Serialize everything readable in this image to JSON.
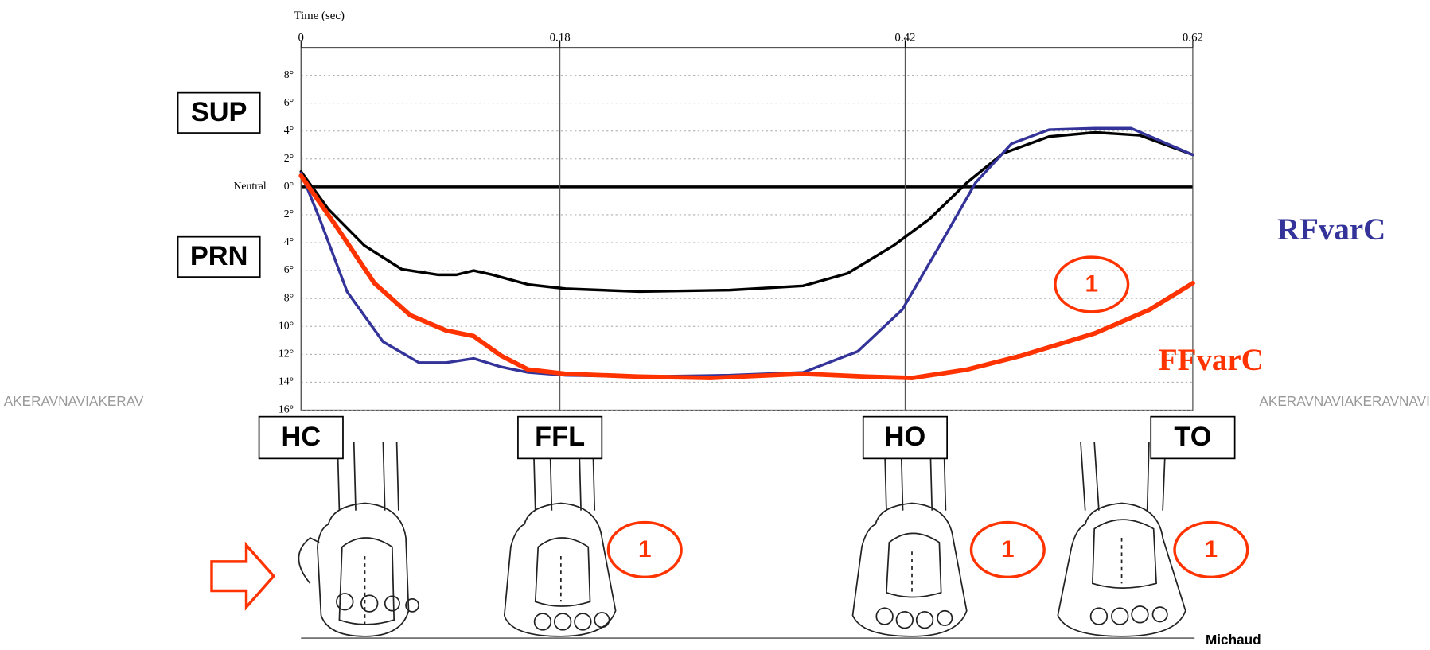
{
  "chart_data": {
    "type": "line",
    "x_label": "Time (sec)",
    "xlim": [
      0,
      0.62
    ],
    "xticks": [
      0,
      0.18,
      0.42,
      0.62
    ],
    "ylim": [
      -16,
      10
    ],
    "yticks": [
      {
        "value": 8,
        "label": "8°"
      },
      {
        "value": 6,
        "label": "6°"
      },
      {
        "value": 4,
        "label": "4°"
      },
      {
        "value": 2,
        "label": "2°"
      },
      {
        "value": 0,
        "label": "0°"
      },
      {
        "value": -2,
        "label": "2°"
      },
      {
        "value": -4,
        "label": "4°"
      },
      {
        "value": -6,
        "label": "6°"
      },
      {
        "value": -8,
        "label": "8°"
      },
      {
        "value": -10,
        "label": "10°"
      },
      {
        "value": -12,
        "label": "12°"
      },
      {
        "value": -14,
        "label": "14°"
      },
      {
        "value": -16,
        "label": "16°"
      }
    ],
    "grid": true,
    "zero_label": "Neutral",
    "side_labels": [
      "SUP",
      "PRN"
    ],
    "phases": [
      "HC",
      "FFL",
      "HO",
      "TO"
    ],
    "series": [
      {
        "color": "#000000",
        "x": [
          0,
          0.019,
          0.044,
          0.07,
          0.095,
          0.108,
          0.12,
          0.133,
          0.158,
          0.184,
          0.235,
          0.298,
          0.349,
          0.38,
          0.412,
          0.437,
          0.463,
          0.488,
          0.52,
          0.552,
          0.583,
          0.62
        ],
        "values": [
          1.1,
          -1.6,
          -4.2,
          -5.9,
          -6.3,
          -6.3,
          -6.0,
          -6.3,
          -7.0,
          -7.3,
          -7.5,
          -7.4,
          -7.1,
          -6.2,
          -4.2,
          -2.3,
          0.3,
          2.4,
          3.6,
          3.9,
          3.7,
          2.3
        ]
      },
      {
        "name": "RFvarC",
        "color": "#333399",
        "x": [
          0,
          0.013,
          0.032,
          0.057,
          0.082,
          0.101,
          0.12,
          0.139,
          0.158,
          0.184,
          0.235,
          0.298,
          0.349,
          0.387,
          0.418,
          0.444,
          0.469,
          0.494,
          0.52,
          0.552,
          0.577,
          0.62
        ],
        "values": [
          1.0,
          -2.3,
          -7.5,
          -11.1,
          -12.6,
          -12.6,
          -12.3,
          -12.9,
          -13.3,
          -13.5,
          -13.6,
          -13.5,
          -13.3,
          -11.8,
          -8.8,
          -4.2,
          0.3,
          3.1,
          4.1,
          4.2,
          4.2,
          2.3
        ]
      },
      {
        "name": "FFvarC",
        "color": "#ff3300",
        "x": [
          0,
          0.025,
          0.051,
          0.076,
          0.101,
          0.12,
          0.139,
          0.158,
          0.184,
          0.235,
          0.285,
          0.349,
          0.393,
          0.425,
          0.463,
          0.501,
          0.552,
          0.59,
          0.62
        ],
        "values": [
          0.8,
          -2.9,
          -6.9,
          -9.2,
          -10.3,
          -10.7,
          -12.1,
          -13.1,
          -13.4,
          -13.6,
          -13.7,
          -13.4,
          -13.6,
          -13.7,
          -13.1,
          -12.1,
          -10.5,
          -8.8,
          -6.9
        ]
      }
    ],
    "markers": [
      "1",
      "1",
      "1",
      "1"
    ],
    "watermark": [
      "AKERAVNAVIAKERAV",
      "AKERAVNAVIAKERAVNAVI"
    ],
    "credit": "Michaud"
  }
}
